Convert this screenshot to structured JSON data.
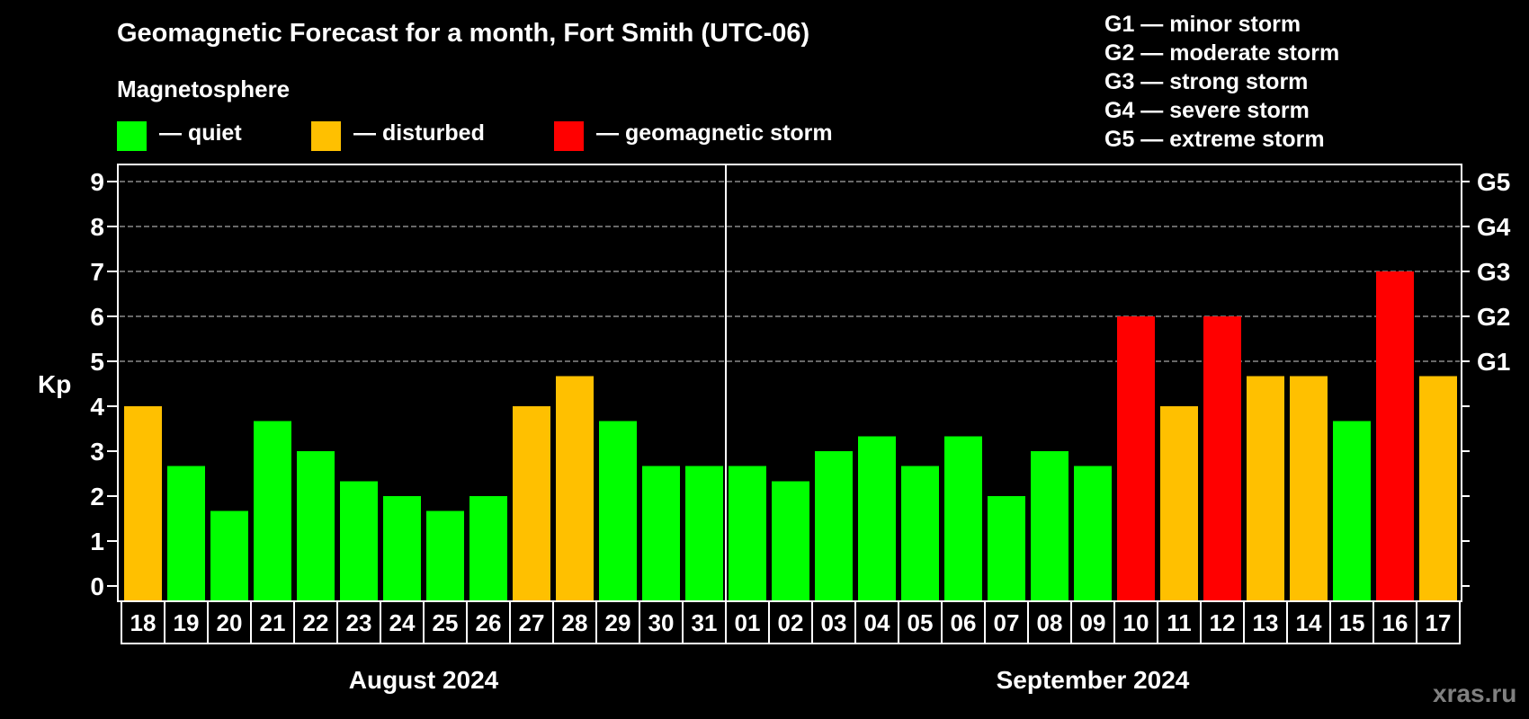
{
  "header": {
    "title": "Geomagnetic Forecast for a month, Fort Smith (UTC-06)",
    "subtitle": "Magnetosphere"
  },
  "legend": [
    {
      "label": "— quiet",
      "color": "#00ff00"
    },
    {
      "label": "— disturbed",
      "color": "#ffc000"
    },
    {
      "label": "— geomagnetic storm",
      "color": "#ff0000"
    }
  ],
  "storm_scale": [
    "G1 — minor storm",
    "G2 — moderate storm",
    "G3 — strong storm",
    "G4 — severe storm",
    "G5 — extreme storm"
  ],
  "watermark": "xras.ru",
  "chart_data": {
    "type": "bar",
    "title": "Geomagnetic Forecast for a month, Fort Smith (UTC-06)",
    "ylabel": "Kp",
    "ylim": [
      0,
      9
    ],
    "yticks": [
      "0",
      "1",
      "2",
      "3",
      "4",
      "5",
      "6",
      "7",
      "8",
      "9"
    ],
    "right_ticks": [
      {
        "kp": 5,
        "label": "G1"
      },
      {
        "kp": 6,
        "label": "G2"
      },
      {
        "kp": 7,
        "label": "G3"
      },
      {
        "kp": 8,
        "label": "G4"
      },
      {
        "kp": 9,
        "label": "G5"
      }
    ],
    "grid_from_kp": 5,
    "months": [
      {
        "label": "August 2024",
        "first_index": 0,
        "last_index": 13
      },
      {
        "label": "September 2024",
        "first_index": 14,
        "last_index": 30
      }
    ],
    "categories": [
      "18",
      "19",
      "20",
      "21",
      "22",
      "23",
      "24",
      "25",
      "26",
      "27",
      "28",
      "29",
      "30",
      "31",
      "01",
      "02",
      "03",
      "04",
      "05",
      "06",
      "07",
      "08",
      "09",
      "10",
      "11",
      "12",
      "13",
      "14",
      "15",
      "16",
      "17"
    ],
    "values": [
      4.0,
      2.67,
      1.67,
      3.67,
      3.0,
      2.33,
      2.0,
      1.67,
      2.0,
      4.0,
      4.67,
      3.67,
      2.67,
      2.67,
      2.67,
      2.33,
      3.0,
      3.33,
      2.67,
      3.33,
      2.0,
      3.0,
      2.67,
      6.0,
      4.0,
      6.0,
      4.67,
      4.67,
      3.67,
      7.0,
      4.67
    ],
    "status": [
      "disturbed",
      "quiet",
      "quiet",
      "quiet",
      "quiet",
      "quiet",
      "quiet",
      "quiet",
      "quiet",
      "disturbed",
      "disturbed",
      "quiet",
      "quiet",
      "quiet",
      "quiet",
      "quiet",
      "quiet",
      "quiet",
      "quiet",
      "quiet",
      "quiet",
      "quiet",
      "quiet",
      "storm",
      "disturbed",
      "storm",
      "disturbed",
      "disturbed",
      "quiet",
      "storm",
      "disturbed"
    ],
    "colors": {
      "quiet": "#00ff00",
      "disturbed": "#ffc000",
      "storm": "#ff0000"
    }
  }
}
